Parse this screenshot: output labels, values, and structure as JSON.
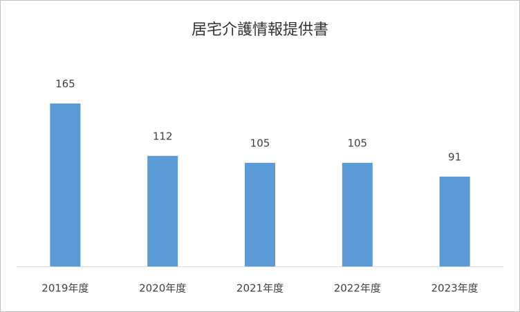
{
  "chart_data": {
    "type": "bar",
    "title": "居宅介護情報提供書",
    "categories": [
      "2019年度",
      "2020年度",
      "2021年度",
      "2022年度",
      "2023年度"
    ],
    "values": [
      165,
      112,
      105,
      105,
      91
    ],
    "color": "#5b9bd5"
  }
}
